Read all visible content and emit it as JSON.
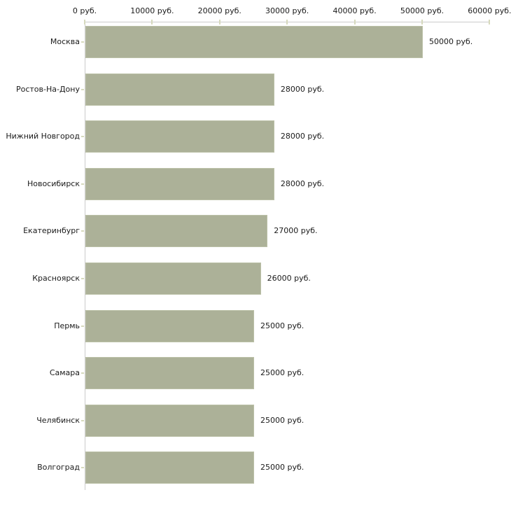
{
  "chart_data": {
    "type": "bar",
    "orientation": "horizontal",
    "title": "",
    "xlabel": "",
    "ylabel": "",
    "unit": "руб.",
    "categories": [
      "Москва",
      "Ростов-На-Дону",
      "Нижний Новгород",
      "Новосибирск",
      "Екатеринбург",
      "Красноярск",
      "Пермь",
      "Самара",
      "Челябинск",
      "Волгоград"
    ],
    "values": [
      50000,
      28000,
      28000,
      28000,
      27000,
      26000,
      25000,
      25000,
      25000,
      25000
    ],
    "value_labels": [
      "50000 руб.",
      "28000 руб.",
      "28000 руб.",
      "28000 руб.",
      "27000 руб.",
      "26000 руб.",
      "25000 руб.",
      "25000 руб.",
      "25000 руб.",
      "25000 руб."
    ],
    "x_ticks": [
      0,
      10000,
      20000,
      30000,
      40000,
      50000,
      60000
    ],
    "x_tick_labels": [
      "0 руб.",
      "10000 руб.",
      "20000 руб.",
      "30000 руб.",
      "40000 руб.",
      "50000 руб.",
      "60000 руб."
    ],
    "xlim": [
      0,
      60000
    ],
    "x_axis_position": "top",
    "grid": false,
    "legend": false,
    "bar_color": "#acb198",
    "bar_border_color": "#bcc1a8",
    "axis_line_color": "#cccccc",
    "tick_mark_color": "#d6d9bd",
    "text_color": "#1a1a1a",
    "background_color": "#ffffff"
  }
}
